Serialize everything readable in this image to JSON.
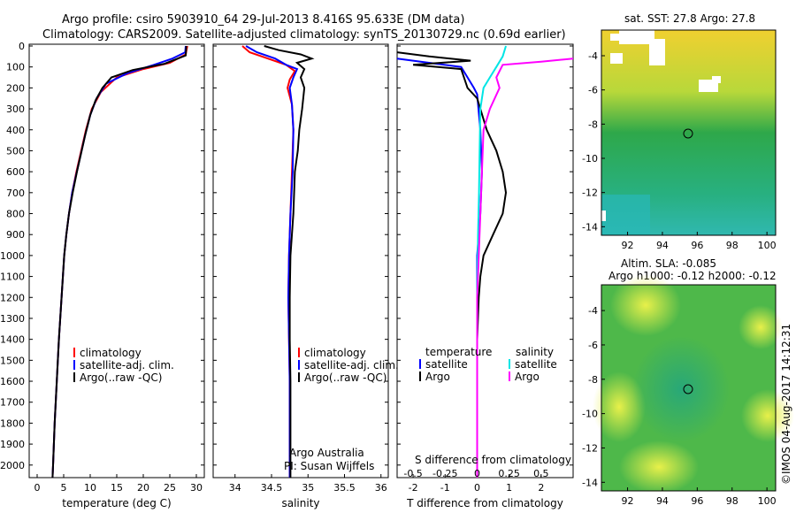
{
  "header": {
    "line1": "Argo profile: csiro 5903910_64 29-Jul-2013 8.416S 95.633E (DM data)",
    "line2": "Climatology: CARS2009. Satellite-adjusted climatology: synTS_20130729.nc (0.69d earlier)"
  },
  "colors": {
    "climatology": "#ff0000",
    "satellite": "#0000ff",
    "argo": "#000000",
    "sat_salinity": "#00e5e5",
    "argo_salinity": "#ff00ff"
  },
  "depth_ticks": [
    0,
    100,
    200,
    300,
    400,
    500,
    600,
    700,
    800,
    900,
    1000,
    1100,
    1200,
    1300,
    1400,
    1500,
    1600,
    1700,
    1800,
    1900,
    2000
  ],
  "chart_data": [
    {
      "type": "line",
      "name": "temperature",
      "xlabel": "temperature (deg C)",
      "ylabel": "",
      "xlim": [
        -1.5,
        31.5
      ],
      "ylim": [
        2060,
        0
      ],
      "xticks": [
        0,
        5,
        10,
        15,
        20,
        25,
        30
      ],
      "xtick_labels": [
        "0",
        "5",
        "10",
        "15",
        "20",
        "25",
        "30"
      ],
      "legend": [
        "climatology",
        "satellite-adj. clim.",
        "Argo(..raw -QC)"
      ],
      "series": [
        {
          "name": "climatology",
          "color": "#ff0000",
          "points": [
            [
              28.3,
              0
            ],
            [
              28.0,
              40
            ],
            [
              25,
              80
            ],
            [
              20,
              110
            ],
            [
              15,
              150
            ],
            [
              12,
              220
            ],
            [
              10.3,
              300
            ],
            [
              9.2,
              400
            ],
            [
              8.3,
              500
            ],
            [
              7.4,
              600
            ],
            [
              6.6,
              700
            ],
            [
              6,
              800
            ],
            [
              5.5,
              900
            ],
            [
              5.1,
              1000
            ],
            [
              4.6,
              1200
            ],
            [
              4.1,
              1400
            ],
            [
              3.7,
              1600
            ],
            [
              3.3,
              1800
            ],
            [
              3.0,
              2000
            ],
            [
              2.9,
              2060
            ]
          ]
        },
        {
          "name": "satellite",
          "color": "#0000ff",
          "points": [
            [
              28.0,
              0
            ],
            [
              27.9,
              30
            ],
            [
              25.5,
              60
            ],
            [
              22,
              90
            ],
            [
              17,
              130
            ],
            [
              13,
              180
            ],
            [
              11.2,
              250
            ],
            [
              10.0,
              330
            ],
            [
              9.0,
              430
            ],
            [
              8.2,
              520
            ],
            [
              7.3,
              620
            ],
            [
              6.6,
              700
            ],
            [
              6,
              800
            ],
            [
              5.5,
              900
            ],
            [
              5.1,
              1000
            ],
            [
              4.6,
              1200
            ],
            [
              4.1,
              1400
            ],
            [
              3.7,
              1600
            ],
            [
              3.3,
              1800
            ],
            [
              3.0,
              2000
            ],
            [
              2.9,
              2060
            ]
          ]
        },
        {
          "name": "argo",
          "color": "#000000",
          "points": [
            [
              28.1,
              0
            ],
            [
              28.0,
              45
            ],
            [
              24,
              85
            ],
            [
              18,
              115
            ],
            [
              14,
              150
            ],
            [
              12.3,
              200
            ],
            [
              11,
              260
            ],
            [
              10,
              330
            ],
            [
              9.1,
              420
            ],
            [
              8.3,
              510
            ],
            [
              7.5,
              600
            ],
            [
              6.7,
              700
            ],
            [
              6,
              800
            ],
            [
              5.5,
              900
            ],
            [
              5.1,
              1000
            ],
            [
              4.6,
              1200
            ],
            [
              4.1,
              1400
            ],
            [
              3.7,
              1600
            ],
            [
              3.3,
              1800
            ],
            [
              3.0,
              2000
            ],
            [
              2.9,
              2060
            ]
          ]
        }
      ]
    },
    {
      "type": "line",
      "name": "salinity",
      "xlabel": "salinity",
      "xlim": [
        33.7,
        36.1
      ],
      "ylim": [
        2060,
        0
      ],
      "xticks": [
        34,
        34.5,
        35,
        35.5,
        36
      ],
      "xtick_labels": [
        "34",
        "34.5",
        "35",
        "35.5",
        "36"
      ],
      "legend": [
        "climatology",
        "satellite-adj. clim.",
        "Argo(..raw -QC)"
      ],
      "annotation": [
        "Argo Australia",
        "PI: Susan Wijffels"
      ],
      "series": [
        {
          "name": "climatology",
          "color": "#ff0000",
          "points": [
            [
              34.1,
              0
            ],
            [
              34.2,
              30
            ],
            [
              34.45,
              60
            ],
            [
              34.7,
              90
            ],
            [
              34.82,
              120
            ],
            [
              34.75,
              160
            ],
            [
              34.72,
              200
            ],
            [
              34.78,
              280
            ],
            [
              34.8,
              400
            ],
            [
              34.78,
              600
            ],
            [
              34.76,
              800
            ],
            [
              34.74,
              1000
            ],
            [
              34.73,
              1200
            ],
            [
              34.74,
              1400
            ],
            [
              34.75,
              1600
            ],
            [
              34.75,
              1800
            ],
            [
              34.75,
              2000
            ],
            [
              34.75,
              2060
            ]
          ]
        },
        {
          "name": "satellite",
          "color": "#0000ff",
          "points": [
            [
              34.15,
              0
            ],
            [
              34.3,
              30
            ],
            [
              34.55,
              60
            ],
            [
              34.7,
              90
            ],
            [
              34.85,
              110
            ],
            [
              34.8,
              150
            ],
            [
              34.75,
              200
            ],
            [
              34.78,
              280
            ],
            [
              34.8,
              400
            ],
            [
              34.79,
              600
            ],
            [
              34.76,
              800
            ],
            [
              34.74,
              1000
            ],
            [
              34.73,
              1200
            ],
            [
              34.74,
              1400
            ],
            [
              34.75,
              1600
            ],
            [
              34.75,
              1800
            ],
            [
              34.75,
              2000
            ],
            [
              34.75,
              2060
            ]
          ]
        },
        {
          "name": "argo",
          "color": "#000000",
          "points": [
            [
              34.4,
              0
            ],
            [
              34.6,
              20
            ],
            [
              34.9,
              40
            ],
            [
              35.05,
              60
            ],
            [
              34.85,
              80
            ],
            [
              34.95,
              110
            ],
            [
              34.9,
              150
            ],
            [
              34.95,
              200
            ],
            [
              34.92,
              300
            ],
            [
              34.88,
              400
            ],
            [
              34.86,
              500
            ],
            [
              34.82,
              600
            ],
            [
              34.8,
              800
            ],
            [
              34.76,
              1000
            ],
            [
              34.75,
              1200
            ],
            [
              34.75,
              1400
            ],
            [
              34.76,
              1600
            ],
            [
              34.76,
              1800
            ],
            [
              34.76,
              2000
            ],
            [
              34.76,
              2060
            ]
          ]
        }
      ]
    },
    {
      "type": "line",
      "name": "difference",
      "xlabel": "T difference from climatology",
      "top_axis_label": "S difference from climatology",
      "xlim": [
        -2.5,
        3.0
      ],
      "ylim": [
        2060,
        0
      ],
      "xticks": [
        -2,
        -1,
        0,
        1,
        2
      ],
      "xtick_labels": [
        "-2",
        "-1",
        "0",
        "1",
        "2"
      ],
      "s_xticks": [
        -2,
        -1,
        0,
        1,
        2
      ],
      "s_xtick_labels": [
        "-0.5",
        "-0.25",
        "0",
        "0.25",
        "0.5"
      ],
      "legend_temperature": "temperature",
      "legend_salinity": "salinity",
      "legend_satellite": "satellite",
      "legend_argo": "Argo",
      "series": [
        {
          "name": "T satellite",
          "color": "#0000ff",
          "points": [
            [
              -2.5,
              60
            ],
            [
              -1.5,
              80
            ],
            [
              -0.5,
              100
            ],
            [
              -0.3,
              150
            ],
            [
              -0.1,
              200
            ],
            [
              0,
              230
            ],
            [
              0.1,
              400
            ],
            [
              0.15,
              600
            ],
            [
              0.1,
              800
            ],
            [
              0,
              1000
            ],
            [
              0,
              1500
            ],
            [
              0,
              2060
            ]
          ]
        },
        {
          "name": "T argo",
          "color": "#000000",
          "points": [
            [
              -2.5,
              30
            ],
            [
              -1.5,
              50
            ],
            [
              -0.2,
              70
            ],
            [
              -2.0,
              90
            ],
            [
              -0.5,
              110
            ],
            [
              -0.3,
              200
            ],
            [
              0,
              250
            ],
            [
              0.3,
              400
            ],
            [
              0.6,
              500
            ],
            [
              0.8,
              600
            ],
            [
              0.9,
              700
            ],
            [
              0.8,
              800
            ],
            [
              0.5,
              900
            ],
            [
              0.2,
              1000
            ],
            [
              0.1,
              1100
            ],
            [
              0.05,
              1200
            ],
            [
              0,
              1400
            ],
            [
              0,
              2060
            ]
          ]
        },
        {
          "name": "S satellite",
          "color": "#00e5e5",
          "points": [
            [
              0.9,
              0
            ],
            [
              0.8,
              50
            ],
            [
              0.6,
              100
            ],
            [
              0.4,
              150
            ],
            [
              0.2,
              200
            ],
            [
              0.1,
              300
            ],
            [
              0.08,
              500
            ],
            [
              0.06,
              700
            ],
            [
              0.03,
              900
            ],
            [
              0,
              1200
            ],
            [
              0,
              2060
            ]
          ]
        },
        {
          "name": "S argo",
          "color": "#ff00ff",
          "points": [
            [
              3.0,
              60
            ],
            [
              2.0,
              75
            ],
            [
              0.8,
              90
            ],
            [
              0.6,
              150
            ],
            [
              0.7,
              200
            ],
            [
              0.4,
              300
            ],
            [
              0.2,
              400
            ],
            [
              0.15,
              600
            ],
            [
              0.1,
              800
            ],
            [
              0.05,
              1000
            ],
            [
              0,
              1200
            ],
            [
              0,
              2060
            ]
          ]
        }
      ]
    },
    {
      "type": "heatmap",
      "name": "sst_map",
      "title": "sat. SST: 27.8  Argo: 27.8",
      "xlim": [
        90.5,
        100.5
      ],
      "ylim": [
        -14.5,
        -2.5
      ],
      "xticks": [
        92,
        94,
        96,
        98,
        100
      ],
      "yticks": [
        -4,
        -6,
        -8,
        -10,
        -12,
        -14
      ],
      "marker": [
        95.633,
        -8.416
      ]
    },
    {
      "type": "heatmap",
      "name": "sla_map",
      "title_line1": "Altim. SLA: -0.085",
      "title_line2": "Argo h1000: -0.12  h2000: -0.12",
      "xlim": [
        90.5,
        100.5
      ],
      "ylim": [
        -14.5,
        -2.5
      ],
      "xticks": [
        92,
        94,
        96,
        98,
        100
      ],
      "yticks": [
        -4,
        -6,
        -8,
        -10,
        -12,
        -14
      ],
      "marker": [
        95.633,
        -8.416
      ]
    }
  ],
  "footer": {
    "credit": "©IMOS 04-Aug-2017 14:12:31"
  }
}
